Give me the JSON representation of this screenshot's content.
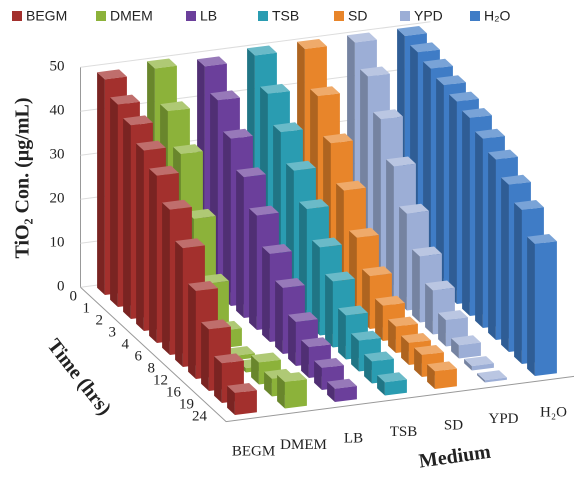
{
  "chart_data": {
    "type": "bar3d",
    "y_label": "TiO₂ Con. (µg/mL)",
    "x_label": "Time (hrs)",
    "z_label": "Medium",
    "categories": [
      "0",
      "1",
      "2",
      "3",
      "4",
      "6",
      "8",
      "12",
      "16",
      "19",
      "24"
    ],
    "ylim": [
      0,
      50
    ],
    "yticks": [
      0,
      10,
      20,
      30,
      40,
      50
    ],
    "series": [
      {
        "name": "BEGM",
        "color": "#a3302d",
        "values": [
          49,
          46,
          44,
          41,
          38,
          33,
          27,
          20,
          14,
          9,
          5
        ]
      },
      {
        "name": "DMEM",
        "color": "#8cb23a",
        "values": [
          50,
          43,
          36,
          24,
          12,
          4,
          1,
          1,
          5,
          4,
          6
        ]
      },
      {
        "name": "LB",
        "color": "#6b3f9b",
        "values": [
          49,
          44,
          38,
          32,
          26,
          20,
          15,
          10,
          7,
          5,
          3
        ]
      },
      {
        "name": "TSB",
        "color": "#2a9cb1",
        "values": [
          50,
          44,
          38,
          32,
          26,
          20,
          15,
          10,
          7,
          5,
          3
        ]
      },
      {
        "name": "SD",
        "color": "#e8852a",
        "values": [
          50,
          42,
          34,
          26,
          18,
          12,
          8,
          6,
          5,
          5,
          4
        ]
      },
      {
        "name": "YPD",
        "color": "#9caed6",
        "values": [
          50,
          45,
          38,
          30,
          22,
          15,
          10,
          6,
          3,
          1,
          0.5
        ]
      },
      {
        "name": "H₂O",
        "color": "#3f7cc6",
        "values": [
          50,
          49,
          48,
          47,
          46,
          45,
          43,
          41,
          38,
          35,
          30
        ]
      }
    ]
  }
}
